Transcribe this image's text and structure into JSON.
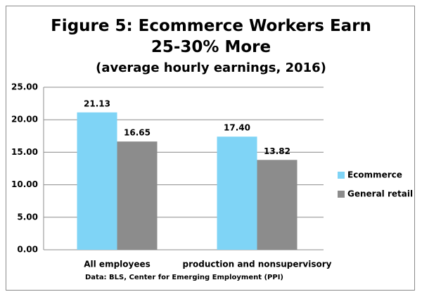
{
  "chart_data": {
    "type": "bar",
    "title": "Figure 5: Ecommerce Workers Earn 25-30% More",
    "subtitle": "(average hourly earnings, 2016)",
    "source": "Data: BLS, Center for Emerging Employment (PPI)",
    "categories": [
      "All employees",
      "production and nonsupervisory"
    ],
    "series": [
      {
        "name": "Ecommerce",
        "color": "#7fd4f6",
        "values": [
          21.13,
          17.4
        ],
        "value_labels": [
          "21.13",
          "17.40"
        ]
      },
      {
        "name": "General retail",
        "color": "#8c8c8c",
        "values": [
          16.65,
          13.82
        ],
        "value_labels": [
          "16.65",
          "13.82"
        ]
      }
    ],
    "ylim": [
      0,
      25
    ],
    "yticks": [
      {
        "value": 0,
        "label": "0.00"
      },
      {
        "value": 5,
        "label": "5.00"
      },
      {
        "value": 10,
        "label": "10.00"
      },
      {
        "value": 15,
        "label": "15.00"
      },
      {
        "value": 20,
        "label": "20.00"
      },
      {
        "value": 25,
        "label": "25.00"
      }
    ],
    "grid": true,
    "legend": "right"
  }
}
